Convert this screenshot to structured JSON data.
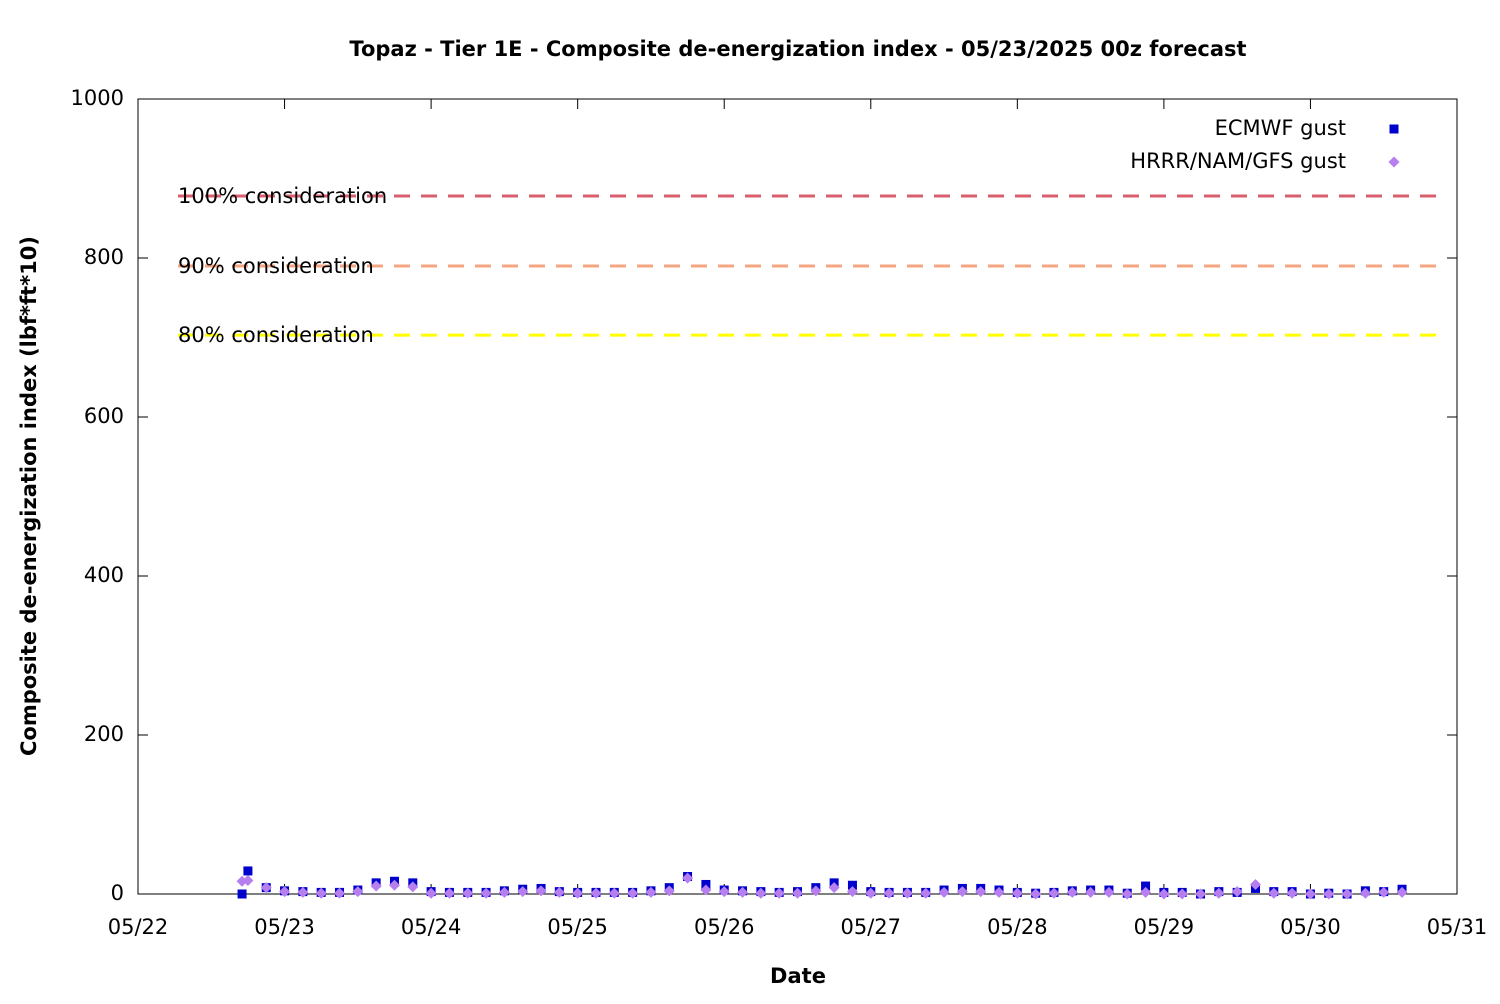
{
  "chart_data": {
    "type": "scatter",
    "title": "Topaz - Tier 1E - Composite de-energization index - 05/23/2025 00z forecast",
    "x_label": "Date",
    "y_label": "Composite de-energization index (lbf*ft*10)",
    "xlim": [
      0,
      9
    ],
    "xticks": [
      {
        "value": 0,
        "label": "05/22"
      },
      {
        "value": 1,
        "label": "05/23"
      },
      {
        "value": 2,
        "label": "05/24"
      },
      {
        "value": 3,
        "label": "05/25"
      },
      {
        "value": 4,
        "label": "05/26"
      },
      {
        "value": 5,
        "label": "05/27"
      },
      {
        "value": 6,
        "label": "05/28"
      },
      {
        "value": 7,
        "label": "05/29"
      },
      {
        "value": 8,
        "label": "05/30"
      },
      {
        "value": 9,
        "label": "05/31"
      }
    ],
    "ylim": [
      0,
      1000
    ],
    "yticks": [
      0,
      200,
      400,
      600,
      800,
      1000
    ],
    "legend_position": "top right",
    "reference_lines": [
      {
        "label": "100% consideration",
        "value": 878,
        "color": "#d95f6e"
      },
      {
        "label": "90% consideration",
        "value": 790,
        "color": "#f4a582"
      },
      {
        "label": "80% consideration",
        "value": 703,
        "color": "#ffff00"
      }
    ],
    "x": [
      0.71,
      0.75,
      0.875,
      1,
      1.125,
      1.25,
      1.375,
      1.5,
      1.625,
      1.75,
      1.875,
      2,
      2.125,
      2.25,
      2.375,
      2.5,
      2.625,
      2.75,
      2.875,
      3,
      3.125,
      3.25,
      3.375,
      3.5,
      3.625,
      3.75,
      3.875,
      4,
      4.125,
      4.25,
      4.375,
      4.5,
      4.625,
      4.75,
      4.875,
      5,
      5.125,
      5.25,
      5.375,
      5.5,
      5.625,
      5.75,
      5.875,
      6,
      6.125,
      6.25,
      6.375,
      6.5,
      6.625,
      6.75,
      6.875,
      7,
      7.125,
      7.25,
      7.375,
      7.5,
      7.625,
      7.75,
      7.875,
      8,
      8.125,
      8.25,
      8.375,
      8.5,
      8.625
    ],
    "series": [
      {
        "name": "ECMWF gust",
        "color": "#0000cc",
        "marker": "square",
        "values": [
          0,
          29,
          8,
          4,
          3,
          2,
          2,
          5,
          14,
          16,
          14,
          3,
          2,
          2,
          2,
          4,
          6,
          7,
          3,
          2,
          2,
          2,
          2,
          4,
          8,
          22,
          12,
          5,
          4,
          3,
          2,
          3,
          8,
          14,
          11,
          3,
          2,
          2,
          2,
          5,
          7,
          7,
          5,
          2,
          1,
          2,
          4,
          5,
          5,
          1,
          10,
          2,
          2,
          0,
          3,
          2,
          7,
          3,
          3,
          0,
          1,
          0,
          4,
          3,
          6
        ]
      },
      {
        "name": "HRRR/NAM/GFS gust",
        "color": "#b77ef0",
        "marker": "diamond",
        "values": [
          16,
          17,
          8,
          3,
          2,
          1,
          1,
          3,
          10,
          11,
          9,
          1,
          1,
          1,
          1,
          2,
          3,
          4,
          2,
          1,
          1,
          1,
          1,
          2,
          4,
          20,
          5,
          3,
          2,
          1,
          1,
          1,
          4,
          8,
          3,
          1,
          1,
          1,
          1,
          2,
          3,
          3,
          2,
          1,
          0,
          1,
          2,
          2,
          2,
          0,
          2,
          0,
          0,
          0,
          1,
          3,
          12,
          1,
          1,
          0,
          0,
          0,
          1,
          2,
          2
        ]
      }
    ]
  }
}
